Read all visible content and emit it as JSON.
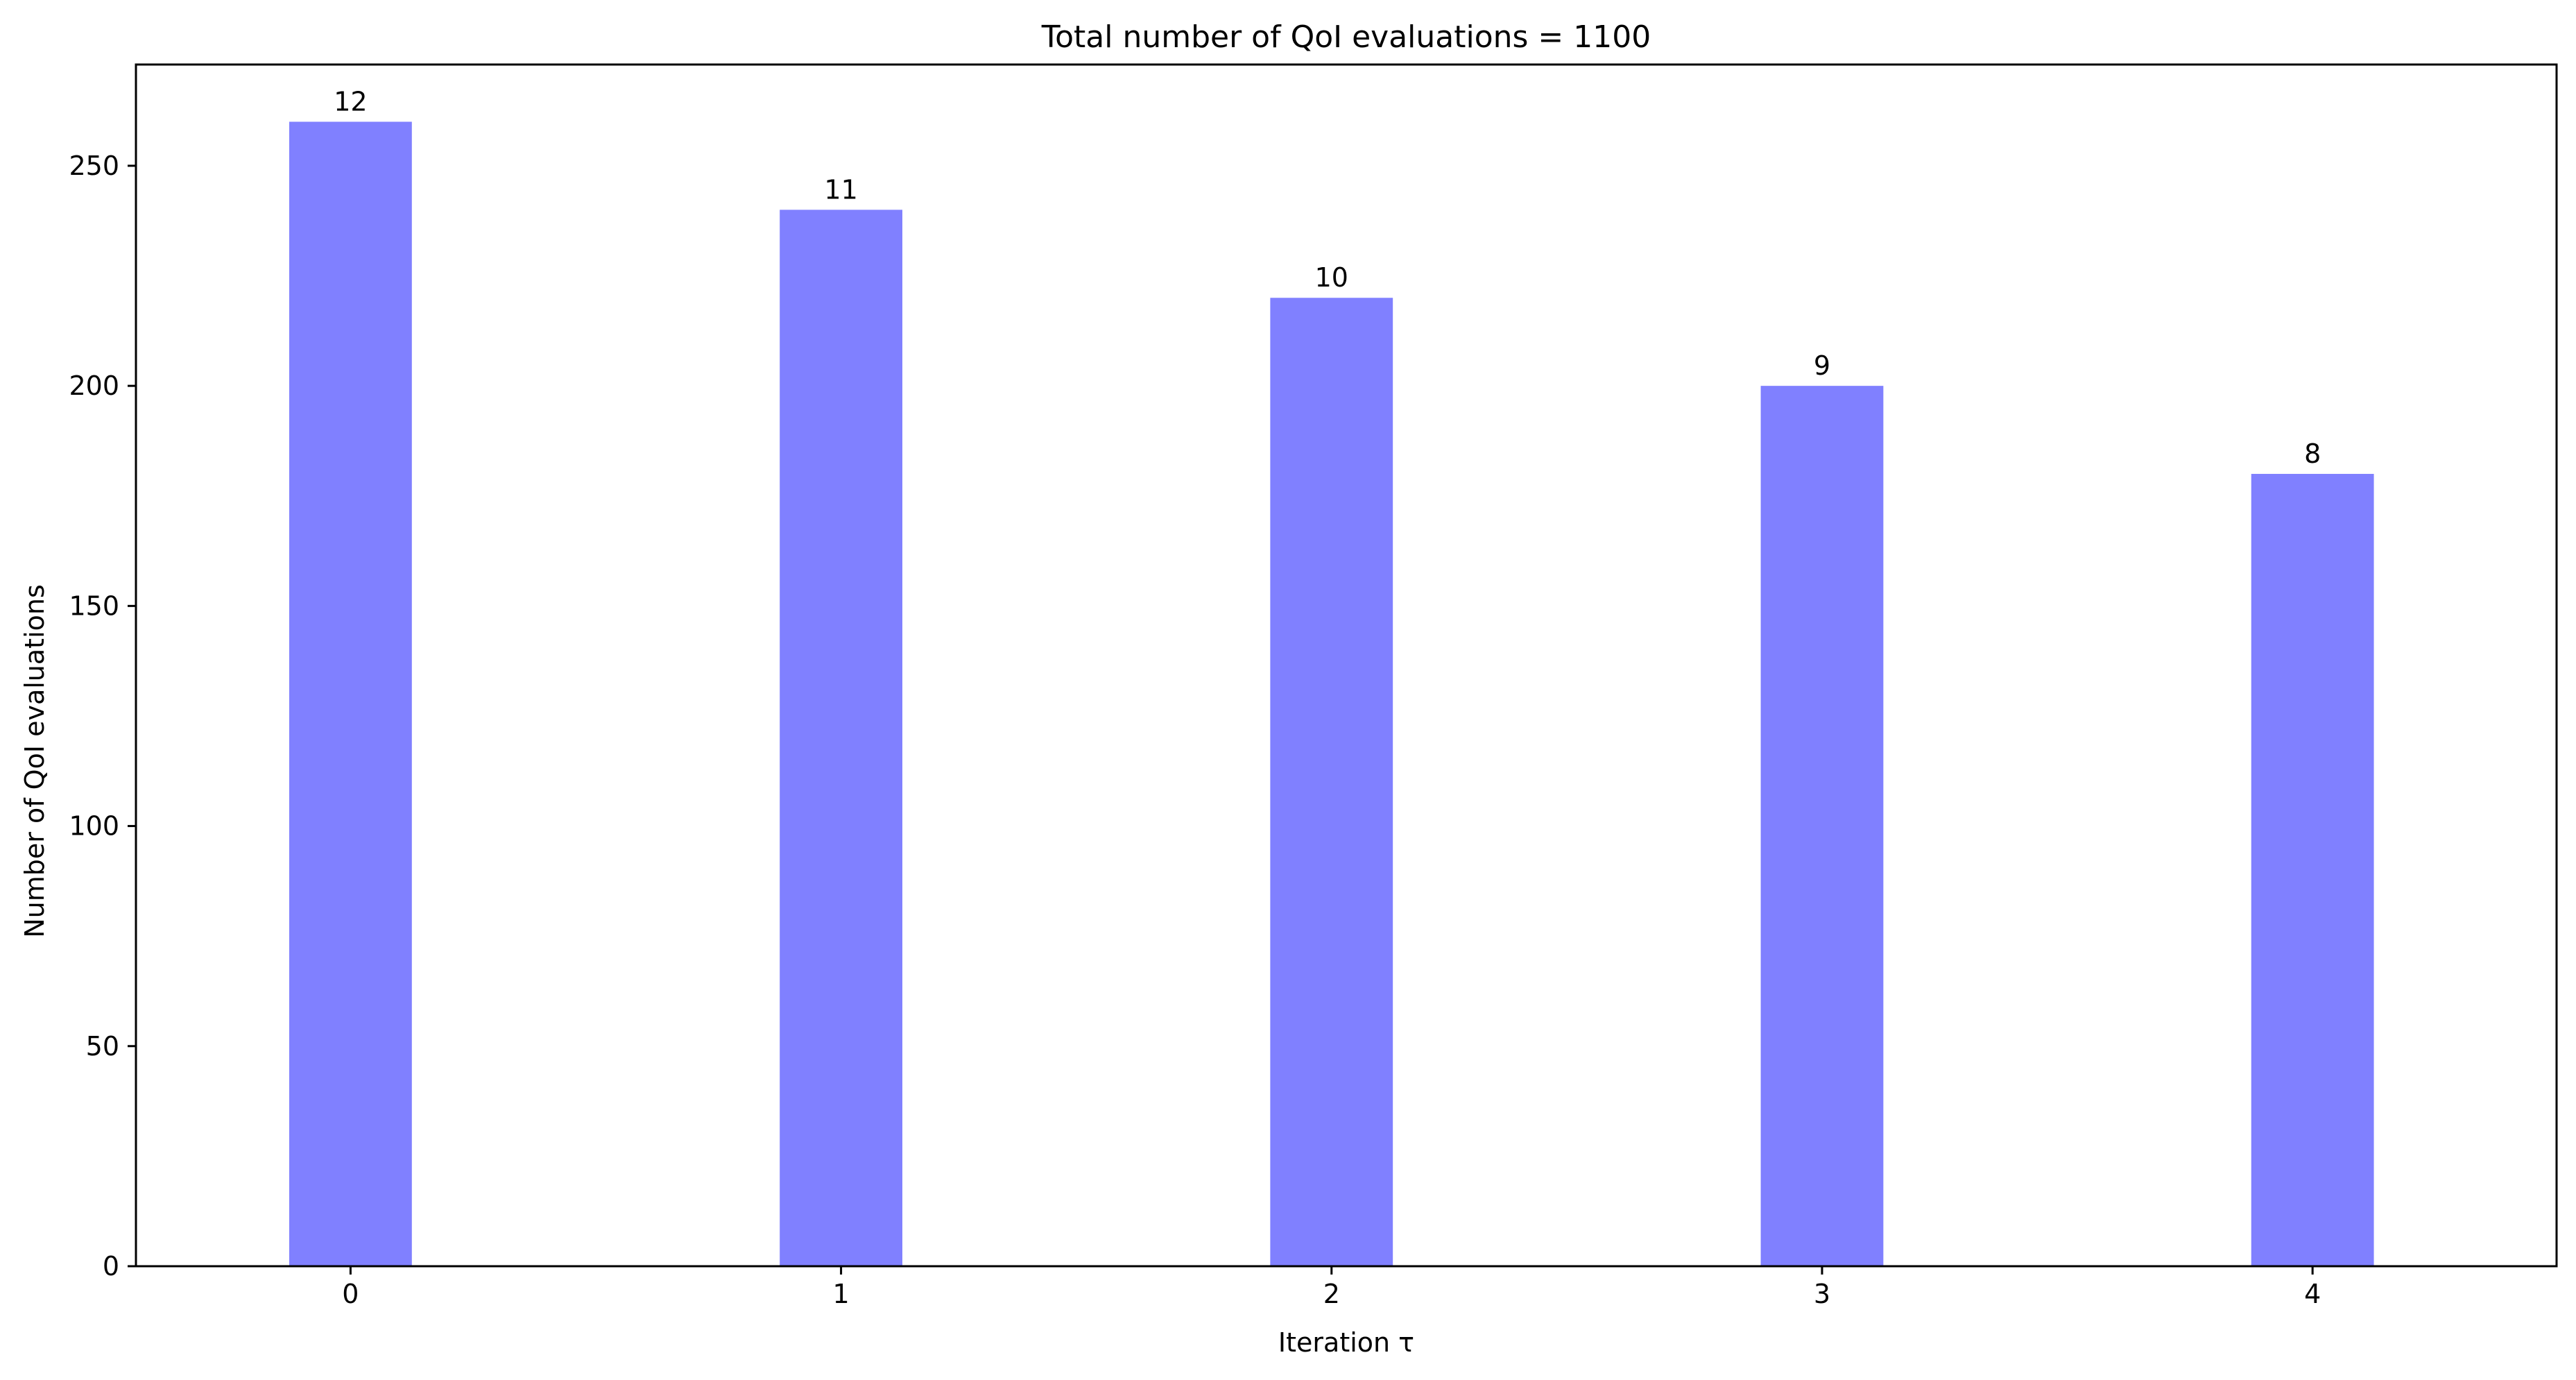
{
  "chart_data": {
    "type": "bar",
    "title": "Total number of QoI evaluations = 1100",
    "xlabel": "Iteration τ",
    "ylabel": "Number of QoI evaluations",
    "categories": [
      "0",
      "1",
      "2",
      "3",
      "4"
    ],
    "values": [
      260,
      240,
      220,
      200,
      180
    ],
    "bar_labels": [
      "12",
      "11",
      "10",
      "9",
      "8"
    ],
    "ylim": [
      0,
      273
    ],
    "yticks": [
      0,
      50,
      100,
      150,
      200,
      250
    ],
    "ytick_labels": [
      "0",
      "50",
      "100",
      "150",
      "200",
      "250"
    ],
    "bar_color": "#8080ff",
    "grid": false,
    "legend": "none"
  }
}
